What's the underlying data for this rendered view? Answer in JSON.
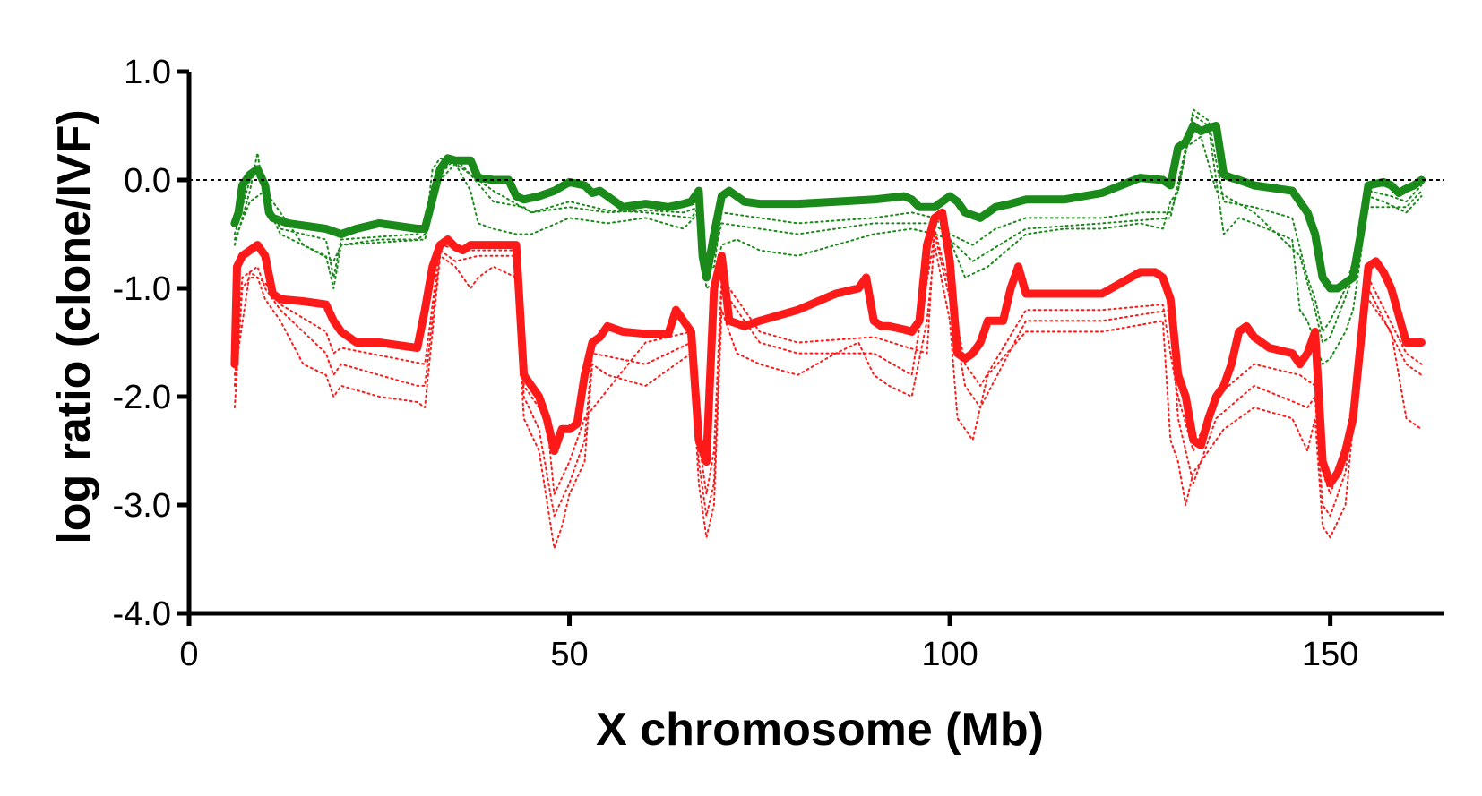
{
  "chart_data": {
    "type": "line",
    "title": "",
    "xlabel": "X chromosome (Mb)",
    "ylabel": "log ratio (clone/IVF)",
    "xlim": [
      0,
      165
    ],
    "ylim": [
      -4.0,
      1.0
    ],
    "x_ticks": [
      {
        "value": 0,
        "label": "0"
      },
      {
        "value": 50,
        "label": "50"
      },
      {
        "value": 100,
        "label": "100"
      },
      {
        "value": 150,
        "label": "150"
      }
    ],
    "y_ticks": [
      {
        "value": 1.0,
        "label": "1.0"
      },
      {
        "value": 0.0,
        "label": "0.0"
      },
      {
        "value": -1.0,
        "label": "-1.0"
      },
      {
        "value": -2.0,
        "label": "-2.0"
      },
      {
        "value": -3.0,
        "label": "-3.0"
      },
      {
        "value": -4.0,
        "label": "-4.0"
      }
    ],
    "reference_line": {
      "y": 0.0,
      "style": "dotted",
      "color": "#000000"
    },
    "grid": false,
    "legend": "none",
    "colors": {
      "green": "#1a8a1a",
      "red": "#ff1a1a"
    },
    "series": [
      {
        "color": "green",
        "style": "solid",
        "x": [
          6,
          6.5,
          7,
          8,
          9,
          10,
          10.5,
          11,
          13,
          18,
          20,
          22,
          25,
          30,
          31,
          33,
          34,
          35,
          37,
          38,
          40,
          42,
          43,
          44,
          46,
          48,
          50,
          52,
          53,
          54,
          55,
          57,
          60,
          63,
          65,
          66,
          67,
          67.5,
          68,
          69,
          70,
          71,
          73,
          75,
          80,
          85,
          90,
          94,
          95,
          96,
          98,
          99,
          100,
          101,
          102,
          104,
          106,
          108,
          110,
          115,
          120,
          125,
          128,
          129,
          130,
          131,
          132,
          133,
          134,
          135,
          136,
          137,
          138,
          140,
          145,
          146,
          147,
          148,
          149,
          150,
          151,
          152,
          153,
          154,
          155,
          157,
          158,
          159,
          160,
          161,
          162
        ],
        "y": [
          -0.4,
          -0.3,
          -0.05,
          0.05,
          0.1,
          -0.05,
          -0.3,
          -0.35,
          -0.4,
          -0.45,
          -0.5,
          -0.45,
          -0.4,
          -0.45,
          -0.45,
          0.1,
          0.2,
          0.18,
          0.18,
          0.02,
          0.0,
          0.0,
          -0.15,
          -0.18,
          -0.15,
          -0.1,
          -0.02,
          -0.05,
          -0.12,
          -0.1,
          -0.15,
          -0.25,
          -0.22,
          -0.25,
          -0.22,
          -0.2,
          -0.1,
          -0.7,
          -0.9,
          -0.5,
          -0.15,
          -0.1,
          -0.2,
          -0.22,
          -0.22,
          -0.2,
          -0.18,
          -0.15,
          -0.18,
          -0.25,
          -0.25,
          -0.2,
          -0.15,
          -0.2,
          -0.3,
          -0.35,
          -0.25,
          -0.22,
          -0.18,
          -0.18,
          -0.12,
          0.02,
          0.0,
          -0.05,
          0.3,
          0.35,
          0.5,
          0.45,
          0.48,
          0.5,
          0.05,
          0.02,
          0.0,
          -0.05,
          -0.1,
          -0.2,
          -0.3,
          -0.5,
          -0.9,
          -1.0,
          -1.0,
          -0.95,
          -0.9,
          -0.5,
          -0.05,
          -0.02,
          -0.05,
          -0.12,
          -0.08,
          -0.05,
          0.0
        ]
      },
      {
        "color": "green",
        "style": "dotted",
        "x": [
          6,
          7,
          8,
          9,
          10,
          12,
          15,
          18,
          19,
          20,
          25,
          30,
          31,
          32,
          33,
          35,
          37,
          38,
          40,
          43,
          45,
          50,
          55,
          60,
          65,
          67,
          68,
          69,
          70,
          72,
          75,
          80,
          85,
          90,
          95,
          98,
          100,
          102,
          105,
          110,
          115,
          120,
          125,
          128,
          129,
          130,
          132,
          134,
          136,
          138,
          140,
          145,
          146,
          147,
          148,
          149,
          150,
          152,
          153,
          154,
          155,
          157,
          160,
          162
        ],
        "y": [
          -0.6,
          -0.35,
          -0.1,
          0.25,
          -0.2,
          -0.5,
          -0.6,
          -0.7,
          -1.0,
          -0.6,
          -0.55,
          -0.55,
          -0.5,
          0.1,
          0.2,
          0.15,
          -0.1,
          -0.4,
          -0.45,
          -0.5,
          -0.5,
          -0.35,
          -0.4,
          -0.35,
          -0.45,
          -0.3,
          -1.0,
          -0.95,
          -0.6,
          -0.55,
          -0.65,
          -0.7,
          -0.6,
          -0.5,
          -0.45,
          -0.5,
          -0.55,
          -0.9,
          -0.8,
          -0.5,
          -0.45,
          -0.45,
          -0.4,
          -0.45,
          -0.2,
          -0.1,
          0.6,
          0.5,
          -0.5,
          -0.35,
          -0.4,
          -0.55,
          -1.2,
          -1.3,
          -1.5,
          -1.7,
          -1.65,
          -1.4,
          -1.2,
          -0.7,
          -0.15,
          -0.2,
          -0.3,
          -0.15
        ]
      },
      {
        "color": "green",
        "style": "dotted",
        "x": [
          6,
          7,
          8,
          9,
          10,
          12,
          18,
          19,
          20,
          30,
          31,
          33,
          35,
          37,
          40,
          44,
          45,
          50,
          55,
          60,
          65,
          67,
          68,
          69,
          70,
          75,
          80,
          90,
          95,
          98,
          100,
          103,
          106,
          110,
          120,
          125,
          129,
          130,
          132,
          134,
          136,
          140,
          145,
          147,
          148,
          149,
          150,
          152,
          154,
          155,
          158,
          160,
          162
        ],
        "y": [
          -0.5,
          -0.25,
          0.0,
          0.1,
          -0.15,
          -0.45,
          -0.55,
          -0.9,
          -0.55,
          -0.5,
          -0.45,
          0.05,
          0.2,
          0.05,
          -0.2,
          -0.25,
          -0.3,
          -0.25,
          -0.3,
          -0.28,
          -0.3,
          -0.25,
          -0.85,
          -0.8,
          -0.3,
          -0.35,
          -0.4,
          -0.35,
          -0.3,
          -0.35,
          -0.5,
          -0.6,
          -0.45,
          -0.35,
          -0.35,
          -0.3,
          -0.3,
          -0.1,
          0.65,
          0.55,
          -0.2,
          -0.25,
          -0.35,
          -0.9,
          -1.1,
          -1.4,
          -1.3,
          -1.0,
          -0.5,
          -0.1,
          -0.15,
          -0.2,
          -0.05
        ]
      },
      {
        "color": "green",
        "style": "dotted",
        "x": [
          6,
          8,
          10,
          15,
          19,
          20,
          31,
          33,
          35,
          40,
          45,
          50,
          55,
          60,
          66,
          67,
          68,
          69,
          70,
          75,
          80,
          90,
          98,
          100,
          103,
          110,
          120,
          129,
          131,
          133,
          135,
          140,
          146,
          148,
          149,
          150,
          153,
          155,
          160,
          162
        ],
        "y": [
          -0.55,
          -0.2,
          -0.1,
          -0.6,
          -0.75,
          -0.6,
          -0.55,
          0.0,
          0.15,
          -0.1,
          -0.3,
          -0.2,
          -0.28,
          -0.3,
          -0.35,
          -0.25,
          -0.75,
          -0.7,
          -0.4,
          -0.45,
          -0.5,
          -0.4,
          -0.4,
          -0.55,
          -0.75,
          -0.45,
          -0.4,
          -0.35,
          0.3,
          0.4,
          -0.1,
          -0.3,
          -0.7,
          -1.2,
          -1.5,
          -1.45,
          -0.9,
          -0.25,
          -0.25,
          -0.1
        ]
      },
      {
        "color": "red",
        "style": "solid",
        "x": [
          6,
          6.3,
          7,
          8,
          9,
          10,
          11,
          12,
          15,
          18,
          19,
          20,
          22,
          25,
          30,
          31,
          32,
          33,
          34,
          35,
          36,
          37,
          38,
          40,
          43,
          44,
          45,
          46,
          47,
          48,
          49,
          50,
          51,
          52,
          53,
          54,
          55,
          57,
          60,
          63,
          64,
          65,
          66,
          67,
          68,
          69,
          70,
          71,
          73,
          75,
          80,
          85,
          88,
          89,
          90,
          91,
          92,
          94,
          95,
          96,
          97,
          98,
          99,
          100,
          101,
          102,
          103,
          104,
          105,
          107,
          108,
          109,
          110,
          115,
          120,
          125,
          127,
          128,
          129,
          130,
          131,
          132,
          133,
          134,
          135,
          136,
          137,
          138,
          139,
          140,
          142,
          145,
          146,
          147,
          148,
          149,
          150,
          151,
          152,
          153,
          154,
          155,
          156,
          157,
          158,
          159,
          160,
          161,
          162
        ],
        "y": [
          -1.7,
          -0.8,
          -0.7,
          -0.65,
          -0.6,
          -0.7,
          -1.05,
          -1.1,
          -1.12,
          -1.15,
          -1.3,
          -1.4,
          -1.5,
          -1.5,
          -1.55,
          -1.2,
          -0.8,
          -0.6,
          -0.55,
          -0.62,
          -0.65,
          -0.6,
          -0.6,
          -0.6,
          -0.6,
          -1.8,
          -1.9,
          -2.0,
          -2.2,
          -2.5,
          -2.3,
          -2.3,
          -2.25,
          -1.8,
          -1.5,
          -1.45,
          -1.35,
          -1.4,
          -1.42,
          -1.42,
          -1.2,
          -1.3,
          -1.4,
          -2.4,
          -2.6,
          -1.0,
          -0.7,
          -1.3,
          -1.35,
          -1.3,
          -1.2,
          -1.05,
          -1.0,
          -0.9,
          -1.3,
          -1.35,
          -1.35,
          -1.38,
          -1.4,
          -1.3,
          -0.6,
          -0.35,
          -0.3,
          -0.75,
          -1.6,
          -1.65,
          -1.6,
          -1.5,
          -1.3,
          -1.3,
          -1.0,
          -0.8,
          -1.05,
          -1.05,
          -1.05,
          -0.85,
          -0.85,
          -0.9,
          -1.1,
          -1.8,
          -2.0,
          -2.4,
          -2.45,
          -2.2,
          -2.0,
          -1.9,
          -1.7,
          -1.4,
          -1.35,
          -1.45,
          -1.55,
          -1.6,
          -1.7,
          -1.6,
          -1.4,
          -2.6,
          -2.8,
          -2.7,
          -2.5,
          -2.2,
          -1.5,
          -0.8,
          -0.75,
          -0.85,
          -1.0,
          -1.25,
          -1.5,
          -1.5,
          -1.5
        ]
      },
      {
        "color": "red",
        "style": "dotted",
        "x": [
          6,
          7,
          8,
          9,
          10,
          12,
          15,
          18,
          19,
          20,
          25,
          30,
          31,
          32,
          33,
          35,
          37,
          38,
          40,
          43,
          44,
          46,
          48,
          49,
          50,
          52,
          53,
          55,
          60,
          64,
          66,
          67,
          68,
          69,
          70,
          72,
          75,
          80,
          85,
          88,
          90,
          92,
          95,
          97,
          98,
          100,
          101,
          103,
          105,
          110,
          120,
          128,
          129,
          130,
          131,
          132,
          134,
          136,
          140,
          145,
          147,
          148,
          149,
          150,
          152,
          154,
          155,
          158,
          160,
          162
        ],
        "y": [
          -2.1,
          -1.0,
          -0.9,
          -0.9,
          -1.1,
          -1.3,
          -1.7,
          -1.8,
          -2.0,
          -1.9,
          -2.0,
          -2.05,
          -2.1,
          -1.4,
          -0.7,
          -0.8,
          -1.0,
          -0.9,
          -0.8,
          -0.9,
          -2.2,
          -2.5,
          -3.4,
          -3.2,
          -2.9,
          -2.6,
          -1.7,
          -1.8,
          -1.9,
          -1.7,
          -1.6,
          -2.8,
          -3.3,
          -3.0,
          -1.2,
          -1.6,
          -1.7,
          -1.8,
          -1.6,
          -1.5,
          -1.8,
          -1.9,
          -2.0,
          -1.3,
          -0.6,
          -1.3,
          -2.2,
          -2.4,
          -1.8,
          -1.4,
          -1.4,
          -1.3,
          -2.4,
          -2.6,
          -3.0,
          -2.7,
          -2.5,
          -2.3,
          -2.1,
          -2.2,
          -2.5,
          -2.2,
          -3.2,
          -3.3,
          -3.0,
          -1.5,
          -1.1,
          -1.4,
          -2.2,
          -2.3
        ]
      },
      {
        "color": "red",
        "style": "dotted",
        "x": [
          6,
          7,
          9,
          10,
          12,
          18,
          19,
          20,
          30,
          31,
          33,
          35,
          38,
          43,
          44,
          46,
          48,
          50,
          52,
          53,
          60,
          66,
          67,
          68,
          69,
          70,
          75,
          80,
          90,
          95,
          98,
          100,
          102,
          104,
          110,
          120,
          129,
          130,
          132,
          135,
          140,
          147,
          148,
          149,
          150,
          152,
          155,
          160,
          162
        ],
        "y": [
          -1.9,
          -0.9,
          -0.8,
          -1.0,
          -1.2,
          -1.6,
          -1.8,
          -1.7,
          -1.9,
          -1.9,
          -0.65,
          -0.75,
          -0.7,
          -0.7,
          -2.0,
          -2.3,
          -3.1,
          -2.8,
          -2.4,
          -1.6,
          -1.7,
          -1.5,
          -2.6,
          -3.1,
          -2.8,
          -1.0,
          -1.5,
          -1.6,
          -1.6,
          -1.8,
          -0.5,
          -1.1,
          -1.9,
          -2.1,
          -1.3,
          -1.3,
          -1.2,
          -2.2,
          -2.8,
          -2.2,
          -1.9,
          -2.1,
          -2.0,
          -3.0,
          -3.1,
          -2.7,
          -1.0,
          -1.7,
          -1.8
        ]
      },
      {
        "color": "red",
        "style": "dotted",
        "x": [
          6,
          8,
          10,
          12,
          18,
          19,
          20,
          31,
          33,
          36,
          43,
          44,
          47,
          48,
          50,
          52,
          60,
          66,
          67,
          68,
          69,
          70,
          75,
          80,
          90,
          97,
          98,
          100,
          102,
          104,
          110,
          120,
          128,
          129,
          130,
          132,
          135,
          140,
          146,
          148,
          149,
          150,
          152,
          155,
          160,
          162
        ],
        "y": [
          -1.8,
          -0.85,
          -0.95,
          -1.15,
          -1.4,
          -1.6,
          -1.55,
          -1.7,
          -0.6,
          -0.65,
          -0.65,
          -1.9,
          -2.2,
          -2.9,
          -2.6,
          -2.2,
          -1.5,
          -1.4,
          -2.4,
          -2.9,
          -2.5,
          -0.9,
          -1.4,
          -1.5,
          -1.45,
          -1.6,
          -0.45,
          -1.0,
          -1.7,
          -1.9,
          -1.2,
          -1.2,
          -1.15,
          -1.6,
          -2.0,
          -2.5,
          -2.0,
          -1.7,
          -1.8,
          -1.9,
          -2.7,
          -2.9,
          -2.5,
          -0.9,
          -1.6,
          -1.7
        ]
      }
    ]
  }
}
